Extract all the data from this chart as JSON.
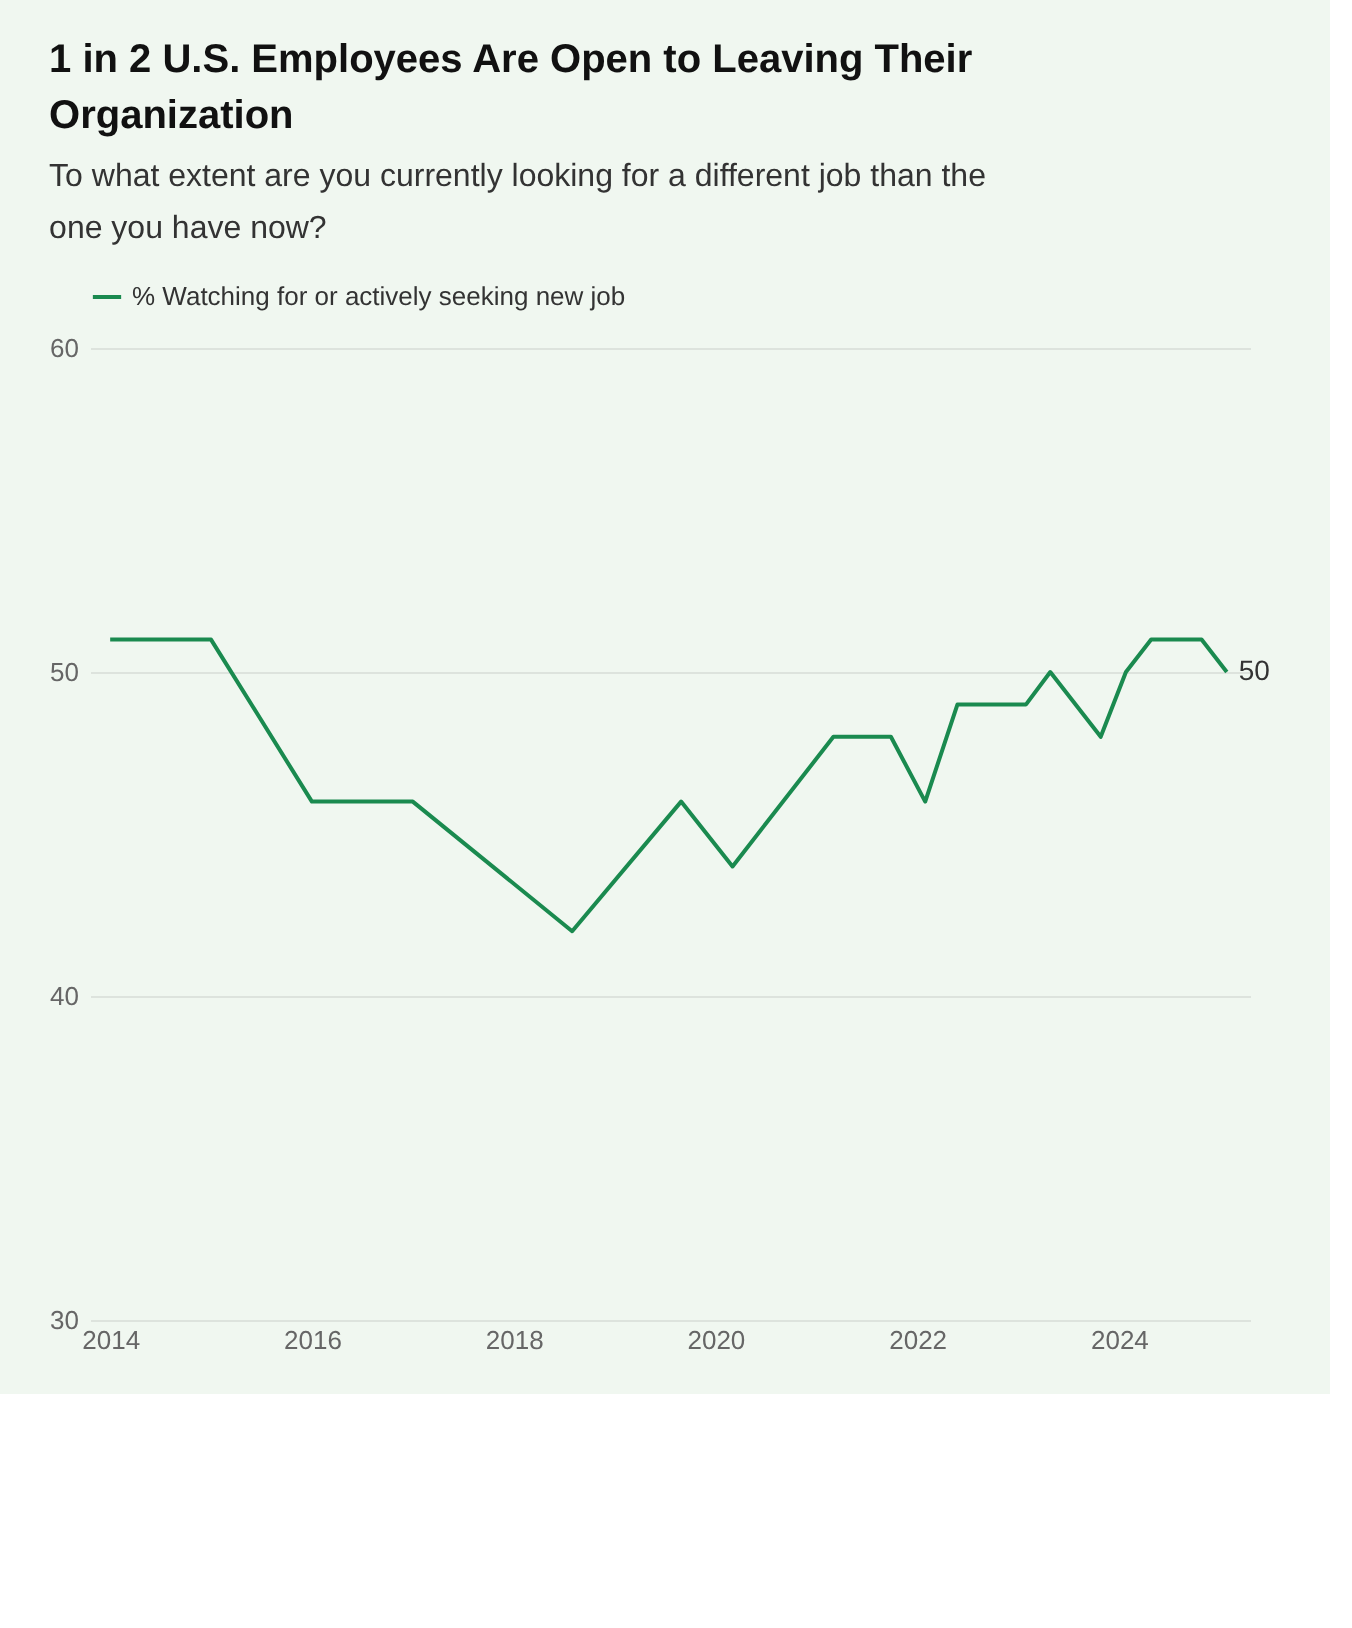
{
  "chart_data": {
    "type": "line",
    "title": "1 in 2 U.S. Employees Are Open to Leaving Their Organization",
    "subtitle": "To what extent are you currently looking for a different job than the one you have now?",
    "x": [
      2014.0,
      2015.0,
      2016.0,
      2017.0,
      2018.58,
      2019.66,
      2020.17,
      2021.17,
      2021.74,
      2022.08,
      2022.4,
      2023.08,
      2023.32,
      2023.82,
      2024.07,
      2024.32,
      2024.82,
      2025.07
    ],
    "series": [
      {
        "name": "% Watching for or actively seeking new job",
        "color": "#1a8a4f",
        "values": [
          51,
          51,
          46,
          46,
          42,
          46,
          44,
          48,
          48,
          46,
          49,
          49,
          50,
          48,
          50,
          51,
          51,
          50
        ],
        "value_labels": [
          null,
          null,
          null,
          null,
          null,
          null,
          null,
          null,
          null,
          null,
          null,
          null,
          null,
          null,
          null,
          null,
          null,
          "50"
        ]
      }
    ],
    "xlim": [
      2013.8,
      2025.3
    ],
    "xticks": [
      2014,
      2016,
      2018,
      2020,
      2022,
      2024
    ],
    "ylim": [
      30,
      60
    ],
    "yticks": [
      30,
      40,
      50,
      60
    ],
    "grid": "y",
    "legend": "top left",
    "marker": "none",
    "line_style": "solid"
  }
}
